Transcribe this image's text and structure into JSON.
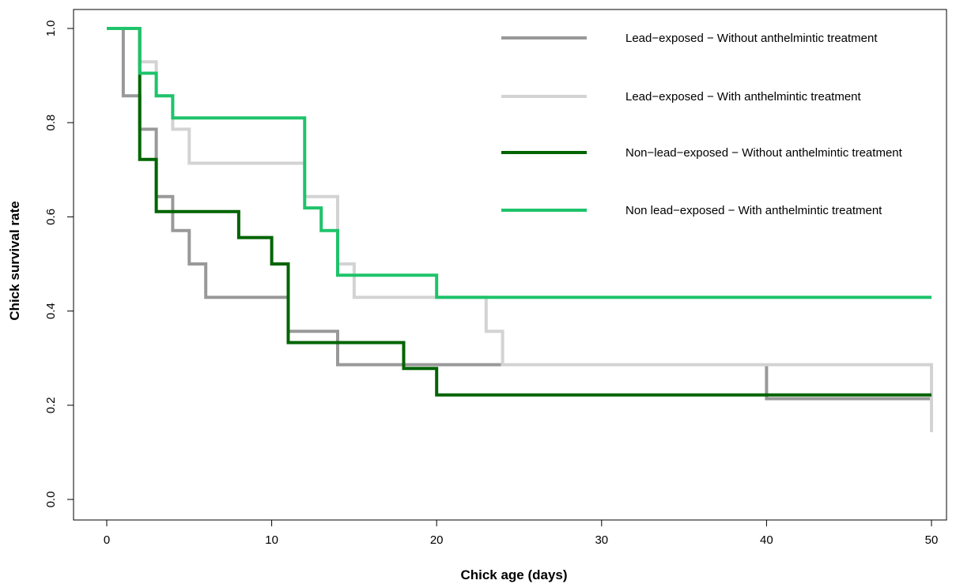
{
  "chart_data": {
    "type": "line",
    "step": true,
    "title": "",
    "xlabel": "Chick age (days)",
    "ylabel": "Chick survival rate",
    "xlim": [
      0,
      50
    ],
    "ylim": [
      0,
      1
    ],
    "xticks": [
      0,
      10,
      20,
      30,
      40,
      50
    ],
    "yticks": [
      0.0,
      0.2,
      0.4,
      0.6,
      0.8,
      1.0
    ],
    "ytick_labels": [
      "0.0",
      "0.2",
      "0.4",
      "0.6",
      "0.8",
      "1.0"
    ],
    "grid": false,
    "legend_position": "top-right",
    "series": [
      {
        "name": "Lead−exposed − Without anthelmintic treatment",
        "color": "#999999",
        "points": [
          [
            0,
            1.0
          ],
          [
            1,
            0.857
          ],
          [
            2,
            0.786
          ],
          [
            3,
            0.643
          ],
          [
            4,
            0.571
          ],
          [
            5,
            0.5
          ],
          [
            6,
            0.429
          ],
          [
            11,
            0.357
          ],
          [
            14,
            0.286
          ],
          [
            40,
            0.214
          ],
          [
            50,
            0.214
          ]
        ]
      },
      {
        "name": "Lead−exposed − With anthelmintic treatment",
        "color": "#d3d3d3",
        "points": [
          [
            0,
            1.0
          ],
          [
            2,
            0.929
          ],
          [
            3,
            0.857
          ],
          [
            4,
            0.786
          ],
          [
            5,
            0.714
          ],
          [
            12,
            0.643
          ],
          [
            14,
            0.5
          ],
          [
            15,
            0.429
          ],
          [
            23,
            0.357
          ],
          [
            24,
            0.286
          ],
          [
            50,
            0.143
          ]
        ]
      },
      {
        "name": "Non−lead−exposed − Without anthelmintic treatment",
        "color": "#006400",
        "points": [
          [
            0,
            1.0
          ],
          [
            2,
            0.722
          ],
          [
            3,
            0.611
          ],
          [
            8,
            0.556
          ],
          [
            10,
            0.5
          ],
          [
            11,
            0.333
          ],
          [
            18,
            0.278
          ],
          [
            20,
            0.222
          ],
          [
            50,
            0.222
          ]
        ]
      },
      {
        "name": "Non lead−exposed − With anthelmintic treatment",
        "color": "#1ec36a",
        "points": [
          [
            0,
            1.0
          ],
          [
            2,
            0.905
          ],
          [
            3,
            0.857
          ],
          [
            4,
            0.81
          ],
          [
            12,
            0.619
          ],
          [
            13,
            0.571
          ],
          [
            14,
            0.476
          ],
          [
            20,
            0.429
          ],
          [
            50,
            0.429
          ]
        ]
      }
    ]
  }
}
